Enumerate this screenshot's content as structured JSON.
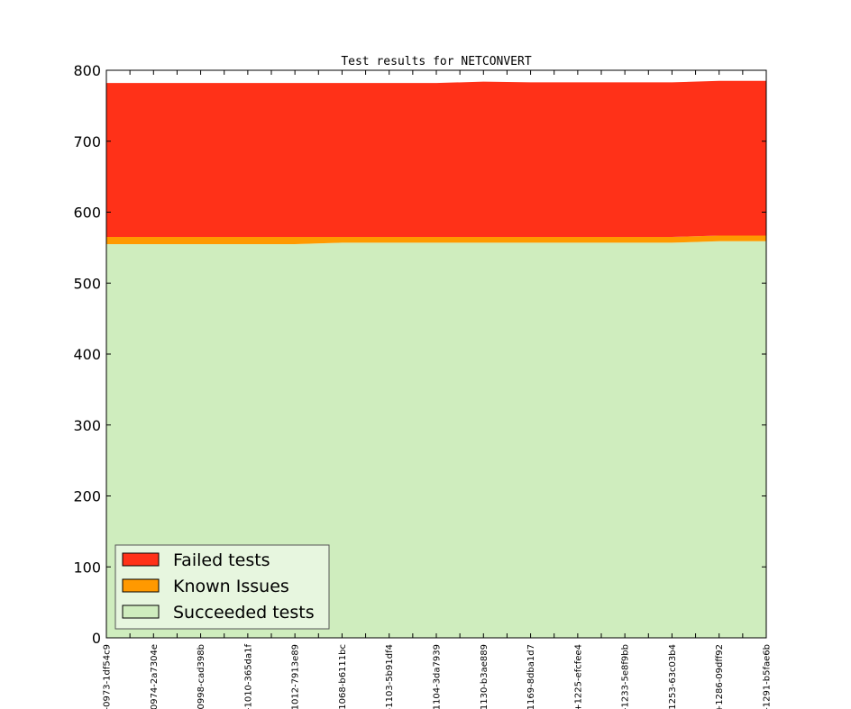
{
  "chart_data": {
    "type": "area",
    "title": "Test results for NETCONVERT",
    "xlabel": "",
    "ylabel": "",
    "ylim": [
      0,
      800
    ],
    "yticks": [
      0,
      100,
      200,
      300,
      400,
      500,
      600,
      700,
      800
    ],
    "categories": [
      "-0973-1df54c9",
      "0974-2a7304e",
      "0998-cad398b",
      "-1010-365da1f",
      "1012-7913e89",
      "1068-b6111bc",
      "-1103-5b91df4",
      "1104-3da7939",
      "1130-b3ae889",
      "1169-8dba1d7",
      "+1225-efcfee4",
      "-1233-5e8f9bb",
      "1253-63c03b4",
      "+1286-09dff92",
      "-1291-b5fae6b"
    ],
    "stacked": true,
    "series": [
      {
        "name": "Succeeded tests",
        "color": "#cfedbe",
        "values": [
          555,
          555,
          555,
          555,
          555,
          557,
          557,
          557,
          557,
          557,
          557,
          557,
          557,
          559,
          559
        ]
      },
      {
        "name": "Known Issues",
        "color": "#ff9900",
        "values": [
          10,
          10,
          10,
          10,
          10,
          8,
          8,
          8,
          8,
          8,
          8,
          8,
          8,
          8,
          8
        ]
      },
      {
        "name": "Failed tests",
        "color": "#ff3118",
        "values": [
          217,
          217,
          217,
          217,
          217,
          217,
          217,
          217,
          219,
          218,
          218,
          218,
          218,
          218,
          218
        ]
      }
    ],
    "legend": {
      "position": "lower-left",
      "order": [
        "Failed tests",
        "Known Issues",
        "Succeeded tests"
      ]
    },
    "grid": false
  }
}
